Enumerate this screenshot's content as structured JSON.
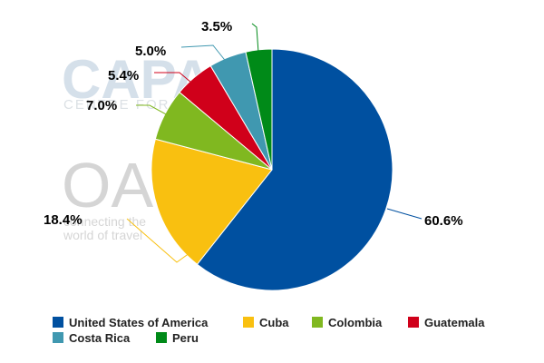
{
  "watermark": {
    "capa": "CAPA",
    "capa_sub": "CENTRE FOR AVIATION",
    "oag": "OAG",
    "oag_line1": "connecting the",
    "oag_line2": "world of travel"
  },
  "chart_data": {
    "type": "pie",
    "start_angle_deg": 0,
    "direction": "clockwise",
    "legend_position": "bottom",
    "slices": [
      {
        "name": "United States of America",
        "value": 60.6,
        "label": "60.6%",
        "color": "#0050a0"
      },
      {
        "name": "Cuba",
        "value": 18.4,
        "label": "18.4%",
        "color": "#f9c010"
      },
      {
        "name": "Colombia",
        "value": 7.0,
        "label": "7.0%",
        "color": "#80b820"
      },
      {
        "name": "Guatemala",
        "value": 5.4,
        "label": "5.4%",
        "color": "#d0001a"
      },
      {
        "name": "Costa Rica",
        "value": 5.0,
        "label": "5.0%",
        "color": "#4098b0"
      },
      {
        "name": "Peru",
        "value": 3.5,
        "label": "3.5%",
        "color": "#008a18"
      }
    ]
  }
}
